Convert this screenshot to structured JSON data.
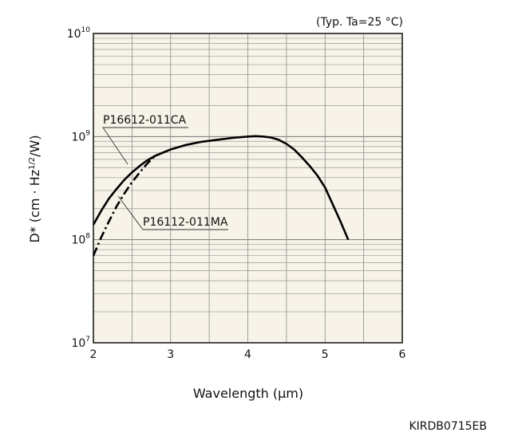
{
  "figure_code": "KIRDB0715EB",
  "chart_data": {
    "type": "line",
    "condition_note": "(Typ. Ta=25 °C)",
    "xlabel": "Wavelength (µm)",
    "ylabel": "D* (cm · Hz1/2/W)",
    "xlim": [
      2,
      6
    ],
    "ylim": [
      10000000.0,
      10000000000.0
    ],
    "yscale": "log",
    "grid": true,
    "background": "#f7f3e8",
    "x_ticks": [
      2,
      3,
      4,
      5,
      6
    ],
    "y_ticks": [
      {
        "base": "10",
        "exp": "7",
        "value": 10000000.0
      },
      {
        "base": "10",
        "exp": "8",
        "value": 100000000.0
      },
      {
        "base": "10",
        "exp": "9",
        "value": 1000000000.0
      },
      {
        "base": "10",
        "exp": "10",
        "value": 10000000000.0
      }
    ],
    "series": [
      {
        "name": "P16612-011CA",
        "style": "solid",
        "x": [
          2.0,
          2.1,
          2.2,
          2.3,
          2.4,
          2.5,
          2.6,
          2.7,
          2.8,
          3.0,
          3.2,
          3.4,
          3.6,
          3.8,
          4.0,
          4.1,
          4.2,
          4.3,
          4.4,
          4.5,
          4.6,
          4.7,
          4.8,
          4.9,
          5.0,
          5.1,
          5.2,
          5.3
        ],
        "y": [
          140000000.0,
          190000000.0,
          250000000.0,
          310000000.0,
          380000000.0,
          450000000.0,
          520000000.0,
          590000000.0,
          650000000.0,
          750000000.0,
          830000000.0,
          890000000.0,
          930000000.0,
          970000000.0,
          1000000000.0,
          1010000000.0,
          1000000000.0,
          980000000.0,
          930000000.0,
          850000000.0,
          750000000.0,
          630000000.0,
          520000000.0,
          420000000.0,
          320000000.0,
          220000000.0,
          150000000.0,
          100000000.0
        ]
      },
      {
        "name": "P16112-011MA",
        "style": "dash-dot",
        "x": [
          2.0,
          2.1,
          2.2,
          2.3,
          2.4,
          2.5,
          2.6,
          2.7,
          2.8
        ],
        "y": [
          70000000.0,
          105000000.0,
          150000000.0,
          210000000.0,
          280000000.0,
          360000000.0,
          450000000.0,
          550000000.0,
          650000000.0
        ]
      }
    ],
    "annotations": [
      {
        "text": "P16612-011CA",
        "series": "P16612-011CA"
      },
      {
        "text": "P16112-011MA",
        "series": "P16112-011MA"
      }
    ]
  }
}
